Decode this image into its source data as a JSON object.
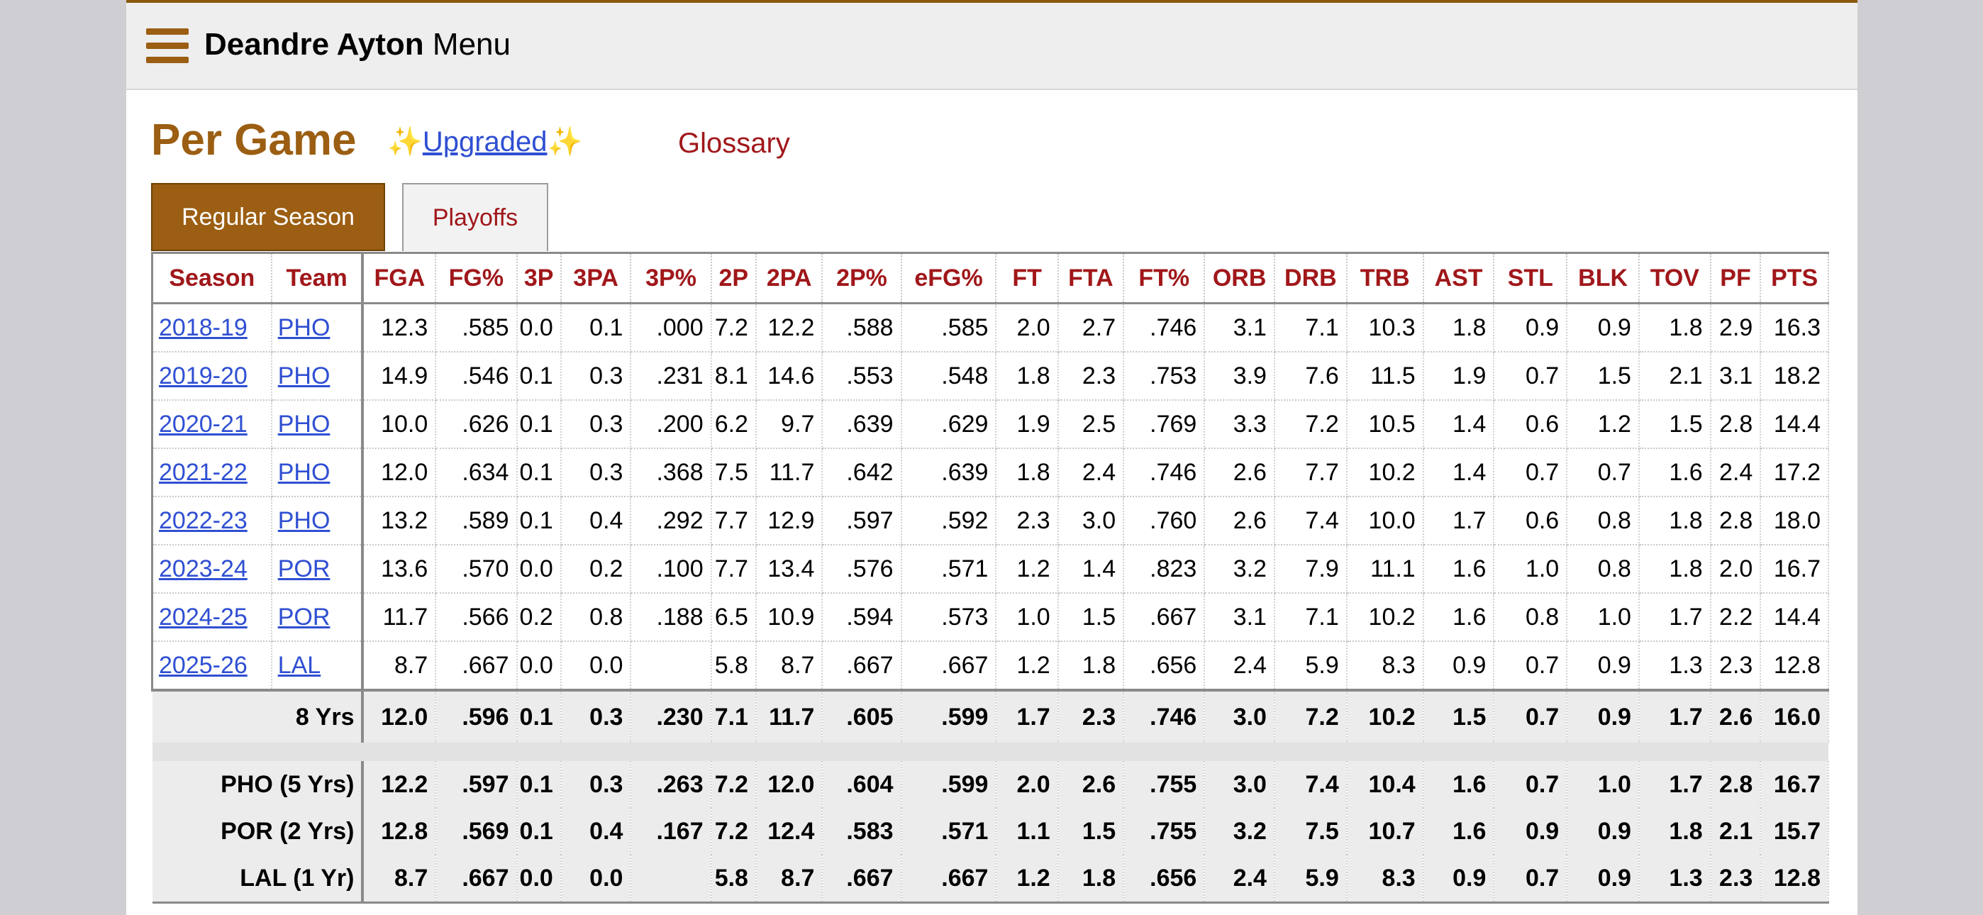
{
  "header": {
    "player_name": "Deandre Ayton",
    "menu_label": "Menu"
  },
  "section": {
    "title": "Per Game",
    "spark": "✨",
    "upgraded_label": "Upgraded",
    "glossary_label": "Glossary"
  },
  "tabs": [
    {
      "label": "Regular Season",
      "active": true
    },
    {
      "label": "Playoffs",
      "active": false
    }
  ],
  "colors": {
    "brand": "#9b5e12",
    "header_red": "#a0171a",
    "link_blue": "#2f4fd2"
  },
  "columns": [
    "Season",
    "Team",
    "FGA",
    "FG%",
    "3P",
    "3PA",
    "3P%",
    "2P",
    "2PA",
    "2P%",
    "eFG%",
    "FT",
    "FTA",
    "FT%",
    "ORB",
    "DRB",
    "TRB",
    "AST",
    "STL",
    "BLK",
    "TOV",
    "PF",
    "PTS"
  ],
  "rows": [
    [
      "2018-19",
      "PHO",
      "12.3",
      ".585",
      "0.0",
      "0.1",
      ".000",
      "7.2",
      "12.2",
      ".588",
      ".585",
      "2.0",
      "2.7",
      ".746",
      "3.1",
      "7.1",
      "10.3",
      "1.8",
      "0.9",
      "0.9",
      "1.8",
      "2.9",
      "16.3"
    ],
    [
      "2019-20",
      "PHO",
      "14.9",
      ".546",
      "0.1",
      "0.3",
      ".231",
      "8.1",
      "14.6",
      ".553",
      ".548",
      "1.8",
      "2.3",
      ".753",
      "3.9",
      "7.6",
      "11.5",
      "1.9",
      "0.7",
      "1.5",
      "2.1",
      "3.1",
      "18.2"
    ],
    [
      "2020-21",
      "PHO",
      "10.0",
      ".626",
      "0.1",
      "0.3",
      ".200",
      "6.2",
      "9.7",
      ".639",
      ".629",
      "1.9",
      "2.5",
      ".769",
      "3.3",
      "7.2",
      "10.5",
      "1.4",
      "0.6",
      "1.2",
      "1.5",
      "2.8",
      "14.4"
    ],
    [
      "2021-22",
      "PHO",
      "12.0",
      ".634",
      "0.1",
      "0.3",
      ".368",
      "7.5",
      "11.7",
      ".642",
      ".639",
      "1.8",
      "2.4",
      ".746",
      "2.6",
      "7.7",
      "10.2",
      "1.4",
      "0.7",
      "0.7",
      "1.6",
      "2.4",
      "17.2"
    ],
    [
      "2022-23",
      "PHO",
      "13.2",
      ".589",
      "0.1",
      "0.4",
      ".292",
      "7.7",
      "12.9",
      ".597",
      ".592",
      "2.3",
      "3.0",
      ".760",
      "2.6",
      "7.4",
      "10.0",
      "1.7",
      "0.6",
      "0.8",
      "1.8",
      "2.8",
      "18.0"
    ],
    [
      "2023-24",
      "POR",
      "13.6",
      ".570",
      "0.0",
      "0.2",
      ".100",
      "7.7",
      "13.4",
      ".576",
      ".571",
      "1.2",
      "1.4",
      ".823",
      "3.2",
      "7.9",
      "11.1",
      "1.6",
      "1.0",
      "0.8",
      "1.8",
      "2.0",
      "16.7"
    ],
    [
      "2024-25",
      "POR",
      "11.7",
      ".566",
      "0.2",
      "0.8",
      ".188",
      "6.5",
      "10.9",
      ".594",
      ".573",
      "1.0",
      "1.5",
      ".667",
      "3.1",
      "7.1",
      "10.2",
      "1.6",
      "0.8",
      "1.0",
      "1.7",
      "2.2",
      "14.4"
    ],
    [
      "2025-26",
      "LAL",
      "8.7",
      ".667",
      "0.0",
      "0.0",
      "",
      "5.8",
      "8.7",
      ".667",
      ".667",
      "1.2",
      "1.8",
      ".656",
      "2.4",
      "5.9",
      "8.3",
      "0.9",
      "0.7",
      "0.9",
      "1.3",
      "2.3",
      "12.8"
    ]
  ],
  "career": [
    "8 Yrs",
    "12.0",
    ".596",
    "0.1",
    "0.3",
    ".230",
    "7.1",
    "11.7",
    ".605",
    ".599",
    "1.7",
    "2.3",
    ".746",
    "3.0",
    "7.2",
    "10.2",
    "1.5",
    "0.7",
    "0.9",
    "1.7",
    "2.6",
    "16.0"
  ],
  "team_totals": [
    [
      "PHO (5 Yrs)",
      "12.2",
      ".597",
      "0.1",
      "0.3",
      ".263",
      "7.2",
      "12.0",
      ".604",
      ".599",
      "2.0",
      "2.6",
      ".755",
      "3.0",
      "7.4",
      "10.4",
      "1.6",
      "0.7",
      "1.0",
      "1.7",
      "2.8",
      "16.7"
    ],
    [
      "POR (2 Yrs)",
      "12.8",
      ".569",
      "0.1",
      "0.4",
      ".167",
      "7.2",
      "12.4",
      ".583",
      ".571",
      "1.1",
      "1.5",
      ".755",
      "3.2",
      "7.5",
      "10.7",
      "1.6",
      "0.9",
      "0.9",
      "1.8",
      "2.1",
      "15.7"
    ],
    [
      "LAL (1 Yr)",
      "8.7",
      ".667",
      "0.0",
      "0.0",
      "",
      "5.8",
      "8.7",
      ".667",
      ".667",
      "1.2",
      "1.8",
      ".656",
      "2.4",
      "5.9",
      "8.3",
      "0.9",
      "0.7",
      "0.9",
      "1.3",
      "2.3",
      "12.8"
    ]
  ]
}
